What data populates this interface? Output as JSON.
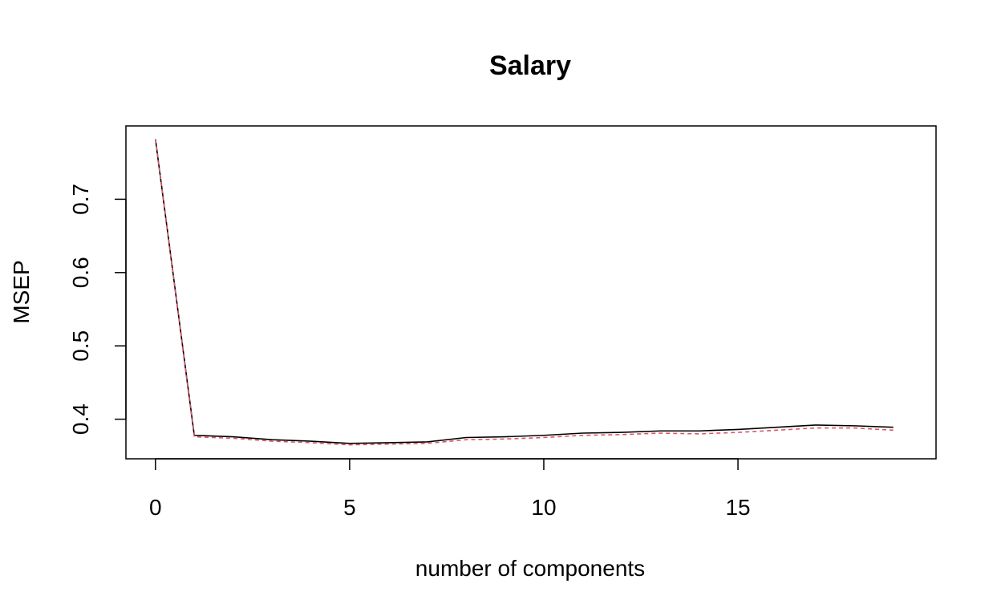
{
  "chart_data": {
    "type": "line",
    "title": "Salary",
    "xlabel": "number of components",
    "ylabel": "MSEP",
    "xlim": [
      -0.76,
      20.1
    ],
    "ylim": [
      0.346,
      0.8
    ],
    "x_ticks": [
      0,
      5,
      10,
      15
    ],
    "x_tick_labels": [
      "0",
      "5",
      "10",
      "15"
    ],
    "y_ticks": [
      0.4,
      0.5,
      0.6,
      0.7
    ],
    "y_tick_labels": [
      "0.4",
      "0.5",
      "0.6",
      "0.7"
    ],
    "grid": false,
    "legend": "none",
    "x": [
      0,
      1,
      2,
      3,
      4,
      5,
      6,
      7,
      8,
      9,
      10,
      11,
      12,
      13,
      14,
      15,
      16,
      17,
      18,
      19
    ],
    "series": [
      {
        "color": "#000000",
        "dash": "solid",
        "values": [
          0.782,
          0.378,
          0.376,
          0.372,
          0.37,
          0.367,
          0.368,
          0.369,
          0.375,
          0.376,
          0.378,
          0.381,
          0.382,
          0.384,
          0.384,
          0.386,
          0.389,
          0.392,
          0.391,
          0.389
        ]
      },
      {
        "color": "#DF536B",
        "dash": "dashed",
        "values": [
          0.782,
          0.376,
          0.374,
          0.37,
          0.368,
          0.365,
          0.366,
          0.367,
          0.372,
          0.373,
          0.375,
          0.378,
          0.379,
          0.381,
          0.38,
          0.382,
          0.385,
          0.388,
          0.388,
          0.385
        ]
      }
    ]
  }
}
